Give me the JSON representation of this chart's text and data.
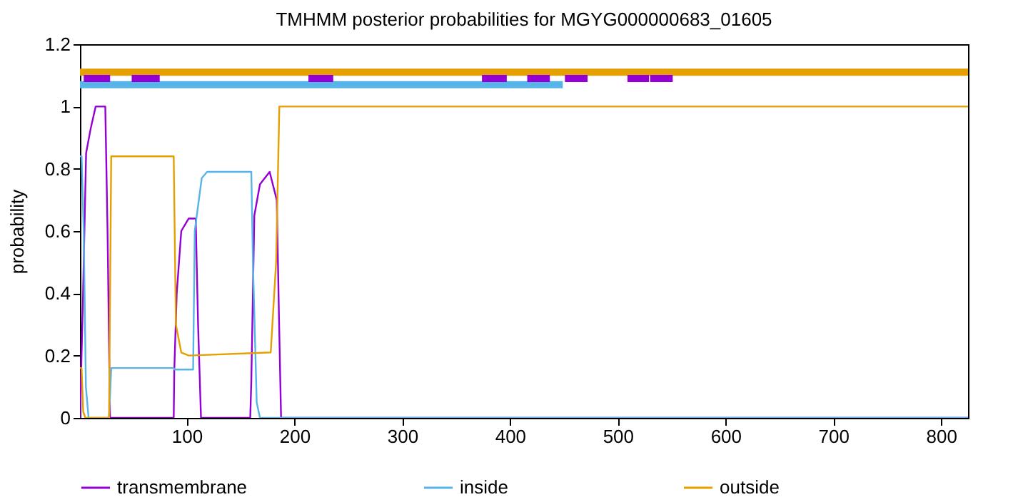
{
  "chart_data": {
    "type": "line",
    "title": "TMHMM posterior probabilities for MGYG000000683_01605",
    "ylabel": "probability",
    "xlim": [
      1,
      825
    ],
    "ylim": [
      0,
      1.2
    ],
    "xticks": [
      100,
      200,
      300,
      400,
      500,
      600,
      700,
      800
    ],
    "yticks": [
      0,
      0.2,
      0.4,
      0.6,
      0.8,
      1,
      1.2
    ],
    "grid": false,
    "legend": "bottom",
    "line_style": "solid",
    "marker": "none",
    "series": [
      {
        "name": "transmembrane",
        "color": "#9400d3",
        "x": [
          1,
          3.7,
          6.7,
          11,
          15.6,
          24.5,
          26.6,
          28.9,
          88,
          88.5,
          90.8,
          95,
          101.8,
          108.4,
          110.6,
          113.3,
          159,
          160,
          162.8,
          168,
          177,
          183.6,
          185.8,
          187.6,
          825
        ],
        "values": [
          0,
          0.37,
          0.85,
          0.93,
          1,
          1,
          0.6,
          0,
          0,
          0.15,
          0.4,
          0.6,
          0.64,
          0.64,
          0.3,
          0,
          0,
          0.12,
          0.65,
          0.75,
          0.79,
          0.7,
          0.3,
          0,
          0
        ]
      },
      {
        "name": "inside",
        "color": "#56b4e9",
        "x": [
          1,
          2.5,
          4.5,
          6.5,
          9,
          28,
          30,
          88,
          89,
          106,
          107.5,
          114,
          119,
          160,
          161.5,
          165,
          168,
          825
        ],
        "values": [
          0.84,
          0.84,
          0.6,
          0.1,
          0,
          0,
          0.16,
          0.16,
          0.155,
          0.155,
          0.6,
          0.77,
          0.79,
          0.79,
          0.5,
          0.05,
          0,
          0
        ]
      },
      {
        "name": "outside",
        "color": "#e69f00",
        "x": [
          1,
          2.5,
          4,
          6,
          28,
          30,
          88,
          90,
          95,
          102,
          178,
          183,
          186,
          825
        ],
        "values": [
          0.16,
          0.16,
          0.02,
          0,
          0,
          0.84,
          0.84,
          0.3,
          0.21,
          0.2,
          0.21,
          0.5,
          1,
          1
        ]
      },
      {
        "color": "#e69f00",
        "x": [
          1,
          825
        ],
        "values": [
          1.11,
          1.11
        ]
      },
      {
        "color": "#56b4e9",
        "x": [
          1,
          449
        ],
        "values": [
          1.07,
          1.07
        ]
      },
      {
        "color": "#9400d3",
        "x": [
          4.5,
          29,
          null,
          49,
          75,
          null,
          213,
          236,
          null,
          374,
          397,
          null,
          416,
          437,
          null,
          451,
          472,
          null,
          509,
          529,
          null,
          530,
          551
        ],
        "values": [
          1.09,
          1.09,
          null,
          1.09,
          1.09,
          null,
          1.09,
          1.09,
          null,
          1.09,
          1.09,
          null,
          1.09,
          1.09,
          null,
          1.09,
          1.09,
          null,
          1.09,
          1.09,
          null,
          1.09,
          1.09
        ]
      }
    ]
  }
}
